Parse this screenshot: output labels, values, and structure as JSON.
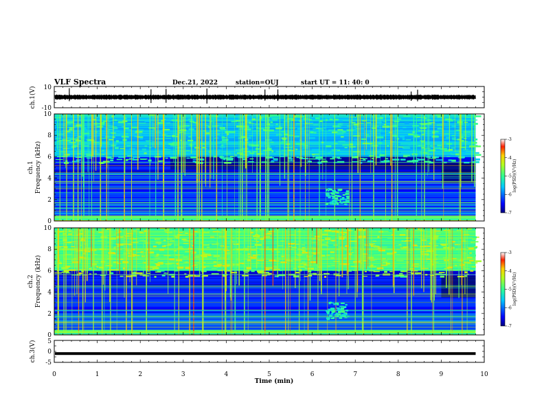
{
  "header": {
    "title": "VLF Spectra",
    "date": "Dec.21, 2022",
    "station": "station=OUJ",
    "start": "start  UT =   11: 40: 0"
  },
  "chart_data": [
    {
      "type": "line",
      "name": "ch1-waveform",
      "ylabel": "ch.1(V)",
      "ylim": [
        -10,
        10
      ],
      "yticks": [
        "10",
        "-10"
      ],
      "xlim": [
        0,
        10
      ],
      "trace_level": 0,
      "trace_x_end": 9.8
    },
    {
      "type": "heatmap",
      "name": "ch1-spectrogram",
      "ylabel_line1": "ch.1",
      "ylabel_line2": "Frequency (kHz)",
      "ylim": [
        0,
        10
      ],
      "yticks": [
        "0",
        "2",
        "4",
        "6",
        "8",
        "10"
      ],
      "xlim": [
        0,
        10
      ],
      "data_x_end": 9.8,
      "colorbar": {
        "label": "log(PSD)(V²/Hz)",
        "range": [
          -7,
          -3
        ],
        "ticks": [
          "-3",
          "-4",
          "-5",
          "-6",
          "-7"
        ]
      }
    },
    {
      "type": "heatmap",
      "name": "ch2-spectrogram",
      "ylabel_line1": "ch.2",
      "ylabel_line2": "Frequency (kHz)",
      "ylim": [
        0,
        10
      ],
      "yticks": [
        "0",
        "2",
        "4",
        "6",
        "8",
        "10"
      ],
      "xlim": [
        0,
        10
      ],
      "data_x_end": 9.8,
      "colorbar": {
        "label": "log(PSD)(V²/Hz)",
        "range": [
          -7,
          -3
        ],
        "ticks": [
          "-3",
          "-4",
          "-5",
          "-6",
          "-7"
        ]
      }
    },
    {
      "type": "line",
      "name": "ch3-waveform",
      "ylabel": "ch.3(V)",
      "ylim": [
        -5,
        5
      ],
      "yticks": [
        "5",
        "0",
        "-5"
      ],
      "xlim": [
        0,
        10
      ],
      "trace_level": -1,
      "trace_x_end": 9.8
    }
  ],
  "xaxis": {
    "label": "Time (min)",
    "ticks": [
      "0",
      "1",
      "2",
      "3",
      "4",
      "5",
      "6",
      "7",
      "8",
      "9",
      "10"
    ]
  }
}
